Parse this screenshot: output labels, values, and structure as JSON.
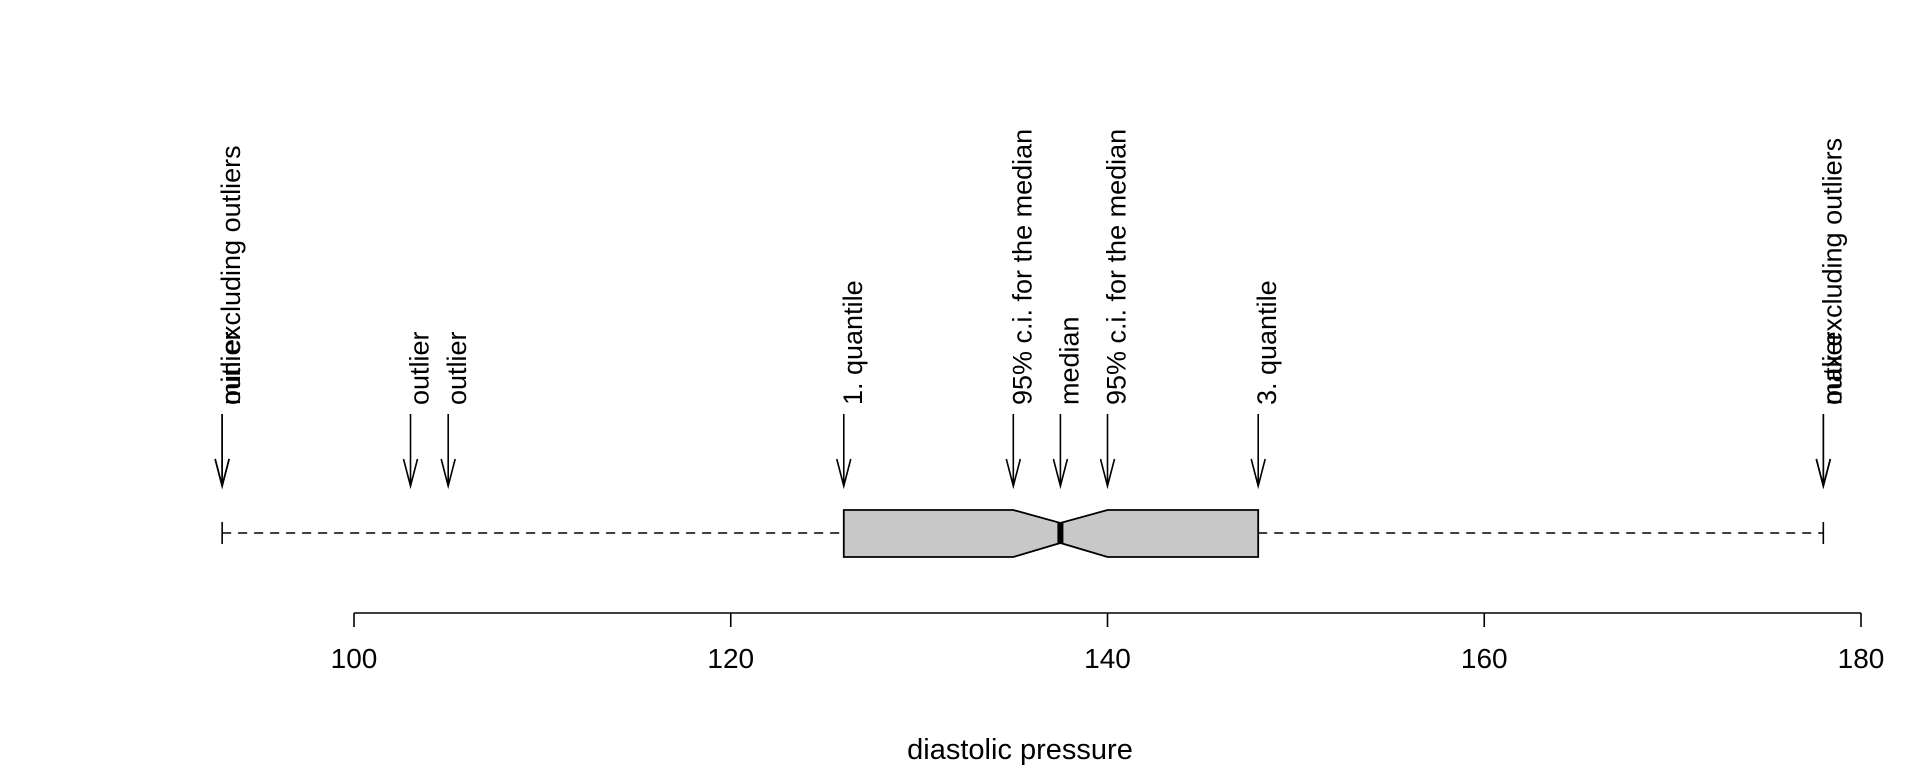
{
  "chart_data": {
    "type": "boxplot",
    "orientation": "horizontal",
    "notched": true,
    "xlabel": "diastolic pressure",
    "xlim": [
      91,
      181
    ],
    "xticks": [
      100,
      120,
      140,
      160,
      180
    ],
    "tick_labels": [
      "100",
      "120",
      "140",
      "160",
      "180"
    ],
    "stats": {
      "min_excluding_outliers": 93,
      "q1": 126,
      "ci_lower": 135,
      "median": 137.5,
      "ci_upper": 140,
      "q3": 148,
      "max_excluding_outliers": 178,
      "outliers": [
        93,
        103,
        105,
        178
      ]
    },
    "annotations": [
      {
        "label": "min excluding outliers",
        "x": 93
      },
      {
        "label": "outlier",
        "x": 93
      },
      {
        "label": "outlier",
        "x": 103
      },
      {
        "label": "outlier",
        "x": 105
      },
      {
        "label": "1. quantile",
        "x": 126
      },
      {
        "label": "95% c.i. for the median",
        "x": 135
      },
      {
        "label": "median",
        "x": 137.5
      },
      {
        "label": "95% c.i. for the median",
        "x": 140
      },
      {
        "label": "3. quantile",
        "x": 148
      },
      {
        "label": "max excluding outliers",
        "x": 178
      },
      {
        "label": "outlier",
        "x": 178
      }
    ],
    "colors": {
      "box_fill": "#c8c8c8",
      "line": "#000000"
    }
  }
}
